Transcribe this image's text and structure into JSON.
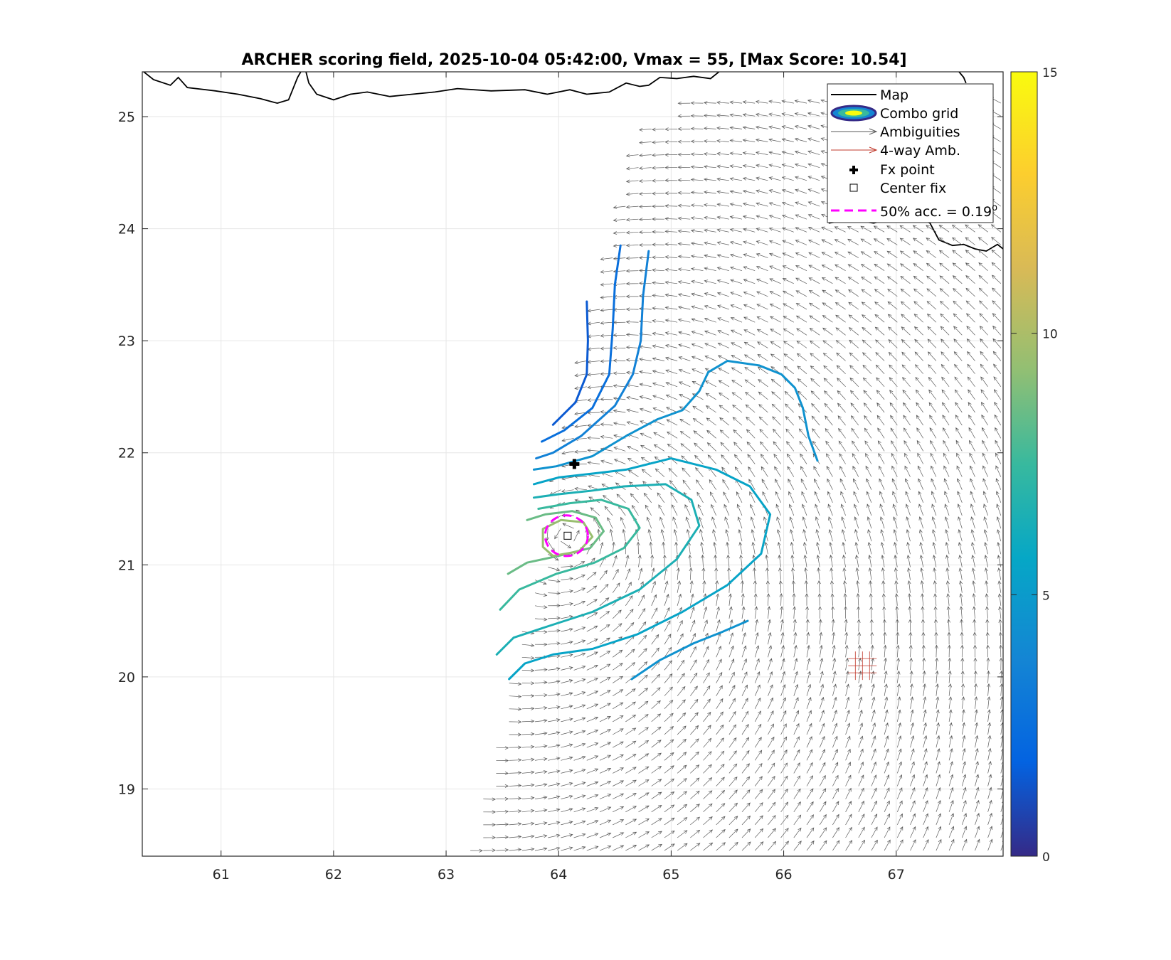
{
  "chart_data": {
    "type": "scatter",
    "title": "ARCHER scoring field, 2025-10-04 05:42:00, Vmax = 55, [Max Score: 10.54]",
    "xlabel": "",
    "ylabel": "",
    "xlim": [
      60.3,
      67.95
    ],
    "ylim": [
      18.4,
      25.4
    ],
    "xticks": [
      61,
      62,
      63,
      64,
      65,
      66,
      67
    ],
    "yticks": [
      19,
      20,
      21,
      22,
      23,
      24,
      25
    ],
    "grid": true,
    "colorbar": {
      "min": 0,
      "max": 15,
      "ticks": [
        0,
        5,
        10,
        15
      ],
      "colormap": "parula"
    },
    "center_fix": {
      "lon": 64.08,
      "lat": 21.26
    },
    "fx_point": {
      "lon": 64.14,
      "lat": 21.9
    },
    "accuracy_circle": {
      "lon": 64.07,
      "lat": 21.26,
      "radius_deg": 0.19
    },
    "max_score": 10.54,
    "contours": [
      {
        "level": 1.5,
        "points": [
          [
            64.25,
            23.35
          ],
          [
            64.26,
            23.0
          ],
          [
            64.25,
            22.7
          ],
          [
            64.15,
            22.45
          ],
          [
            63.95,
            22.25
          ]
        ]
      },
      {
        "level": 2.5,
        "points": [
          [
            64.55,
            23.85
          ],
          [
            64.5,
            23.5
          ],
          [
            64.48,
            23.1
          ],
          [
            64.45,
            22.7
          ],
          [
            64.3,
            22.4
          ],
          [
            64.05,
            22.2
          ],
          [
            63.85,
            22.1
          ]
        ]
      },
      {
        "level": 3.5,
        "points": [
          [
            64.8,
            23.8
          ],
          [
            64.75,
            23.4
          ],
          [
            64.73,
            23.0
          ],
          [
            64.66,
            22.7
          ],
          [
            64.5,
            22.42
          ],
          [
            64.2,
            22.15
          ],
          [
            63.95,
            22.0
          ],
          [
            63.8,
            21.95
          ]
        ]
      },
      {
        "level": 4.5,
        "points": [
          [
            66.3,
            21.93
          ],
          [
            66.22,
            22.15
          ],
          [
            66.17,
            22.4
          ],
          [
            66.1,
            22.58
          ],
          [
            65.98,
            22.7
          ],
          [
            65.78,
            22.78
          ],
          [
            65.5,
            22.82
          ],
          [
            65.33,
            22.72
          ],
          [
            65.25,
            22.55
          ],
          [
            65.1,
            22.38
          ],
          [
            64.88,
            22.3
          ],
          [
            64.6,
            22.15
          ],
          [
            64.3,
            21.97
          ],
          [
            63.98,
            21.88
          ],
          [
            63.78,
            21.85
          ]
        ]
      },
      {
        "level": 4.5,
        "points": [
          [
            64.65,
            19.98
          ],
          [
            64.9,
            20.15
          ],
          [
            65.2,
            20.3
          ],
          [
            65.45,
            20.4
          ],
          [
            65.68,
            20.5
          ]
        ]
      },
      {
        "level": 5.5,
        "points": [
          [
            63.56,
            19.98
          ],
          [
            63.7,
            20.12
          ],
          [
            63.95,
            20.2
          ],
          [
            64.3,
            20.25
          ],
          [
            64.7,
            20.38
          ],
          [
            65.1,
            20.58
          ],
          [
            65.5,
            20.82
          ],
          [
            65.8,
            21.1
          ],
          [
            65.88,
            21.45
          ],
          [
            65.7,
            21.7
          ],
          [
            65.4,
            21.85
          ],
          [
            65.0,
            21.95
          ],
          [
            64.6,
            21.85
          ],
          [
            64.35,
            21.82
          ],
          [
            64.0,
            21.78
          ],
          [
            63.78,
            21.72
          ]
        ]
      },
      {
        "level": 6.5,
        "points": [
          [
            63.45,
            20.2
          ],
          [
            63.6,
            20.35
          ],
          [
            63.9,
            20.45
          ],
          [
            64.3,
            20.58
          ],
          [
            64.72,
            20.78
          ],
          [
            65.05,
            21.05
          ],
          [
            65.25,
            21.35
          ],
          [
            65.18,
            21.58
          ],
          [
            64.95,
            21.72
          ],
          [
            64.58,
            21.7
          ],
          [
            64.28,
            21.66
          ],
          [
            64.0,
            21.63
          ],
          [
            63.78,
            21.6
          ]
        ]
      },
      {
        "level": 7.5,
        "points": [
          [
            63.48,
            20.6
          ],
          [
            63.65,
            20.78
          ],
          [
            63.98,
            20.92
          ],
          [
            64.32,
            21.02
          ],
          [
            64.58,
            21.15
          ],
          [
            64.72,
            21.33
          ],
          [
            64.62,
            21.5
          ],
          [
            64.38,
            21.58
          ],
          [
            64.1,
            21.55
          ],
          [
            63.82,
            21.5
          ]
        ]
      },
      {
        "level": 8.5,
        "points": [
          [
            63.55,
            20.92
          ],
          [
            63.72,
            21.02
          ],
          [
            64.0,
            21.08
          ],
          [
            64.28,
            21.15
          ],
          [
            64.4,
            21.3
          ],
          [
            64.33,
            21.42
          ],
          [
            64.12,
            21.48
          ],
          [
            63.88,
            21.45
          ],
          [
            63.72,
            21.4
          ]
        ]
      },
      {
        "level": 9.5,
        "points": [
          [
            63.95,
            21.08
          ],
          [
            64.18,
            21.12
          ],
          [
            64.3,
            21.25
          ],
          [
            64.22,
            21.38
          ],
          [
            64.02,
            21.4
          ],
          [
            63.86,
            21.32
          ],
          [
            63.86,
            21.16
          ],
          [
            63.95,
            21.08
          ]
        ]
      }
    ],
    "legend": {
      "location": "top-right",
      "entries": [
        "Map",
        "Combo grid",
        "Ambiguities",
        "4-way Amb.",
        "Fx point",
        "Center fix",
        "50% acc. = 0.19"
      ],
      "superscript": "o"
    }
  },
  "colors": {
    "grid": "#e6e6e6",
    "axis": "#262626",
    "coast": "#000000",
    "arrow": "#5a5a5a",
    "amb4": "#c0392b",
    "accuracy": "#ff00ff"
  }
}
